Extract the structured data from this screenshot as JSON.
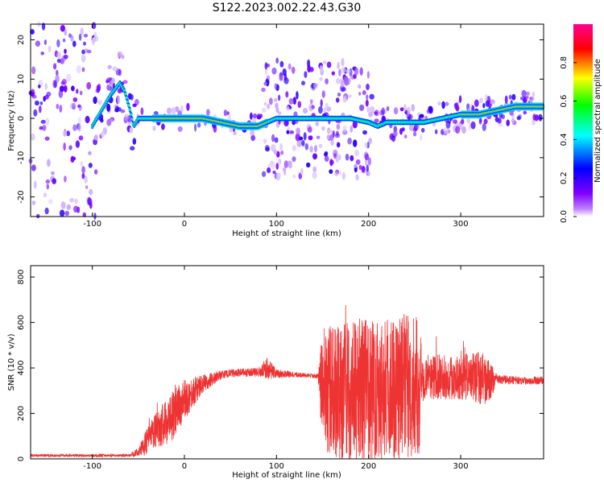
{
  "title": "S122.2023.002.22.43.G30",
  "chart_data": [
    {
      "type": "heatmap",
      "xlabel": "Height of straight line (km)",
      "ylabel": "Frequency (Hz)",
      "xlim": [
        -167,
        390
      ],
      "ylim": [
        -25,
        24
      ],
      "x_ticks": [
        -100,
        0,
        100,
        200,
        300
      ],
      "y_ticks": [
        -20,
        -10,
        0,
        10,
        20
      ],
      "grid": false,
      "colorbar": {
        "label": "Normalized spectral amplitude",
        "range": [
          0,
          1
        ],
        "ticks": [
          0.0,
          0.2,
          0.4,
          0.6,
          0.8
        ],
        "colors": [
          "#ffffff",
          "#8000ff",
          "#0000ff",
          "#00ffff",
          "#00ff00",
          "#ffff00",
          "#ff0000",
          "#ff0090"
        ]
      },
      "ridge": {
        "x": [
          -100,
          -90,
          -80,
          -70,
          -65,
          -60,
          -55,
          -50,
          -45,
          -40,
          -30,
          -20,
          0,
          20,
          40,
          60,
          80,
          90,
          100,
          120,
          150,
          180,
          200,
          210,
          220,
          240,
          260,
          280,
          300,
          320,
          340,
          360,
          390
        ],
        "y": [
          -2,
          2,
          6,
          9,
          7,
          3,
          -2,
          0,
          0,
          0,
          0,
          0,
          0,
          0,
          -1,
          -2,
          -2,
          -1,
          0,
          0,
          0,
          0,
          -1,
          -2,
          -1,
          -1,
          -1,
          0,
          1,
          1,
          2,
          3,
          3
        ]
      }
    },
    {
      "type": "line",
      "xlabel": "Height of straight line (km)",
      "ylabel": "SNR (10 * v/v)",
      "xlim": [
        -167,
        390
      ],
      "ylim": [
        0,
        850
      ],
      "x_ticks": [
        -100,
        0,
        100,
        200,
        300
      ],
      "y_ticks": [
        0,
        200,
        400,
        600,
        800
      ],
      "color": "#ee3333",
      "envelope": {
        "x": [
          -167,
          -60,
          -50,
          -40,
          -30,
          -20,
          -10,
          0,
          20,
          40,
          60,
          80,
          90,
          100,
          120,
          140,
          145,
          150,
          160,
          180,
          200,
          220,
          240,
          255,
          260,
          280,
          300,
          320,
          330,
          340,
          360,
          390
        ],
        "mean": [
          15,
          15,
          30,
          80,
          130,
          160,
          200,
          260,
          330,
          370,
          380,
          380,
          400,
          375,
          370,
          365,
          365,
          310,
          300,
          300,
          310,
          320,
          320,
          320,
          360,
          360,
          360,
          360,
          340,
          350,
          345,
          345
        ],
        "spread": [
          6,
          6,
          20,
          60,
          80,
          100,
          110,
          90,
          40,
          20,
          18,
          20,
          50,
          20,
          12,
          10,
          10,
          260,
          300,
          320,
          320,
          330,
          320,
          300,
          100,
          100,
          100,
          120,
          100,
          20,
          18,
          18
        ]
      }
    }
  ]
}
